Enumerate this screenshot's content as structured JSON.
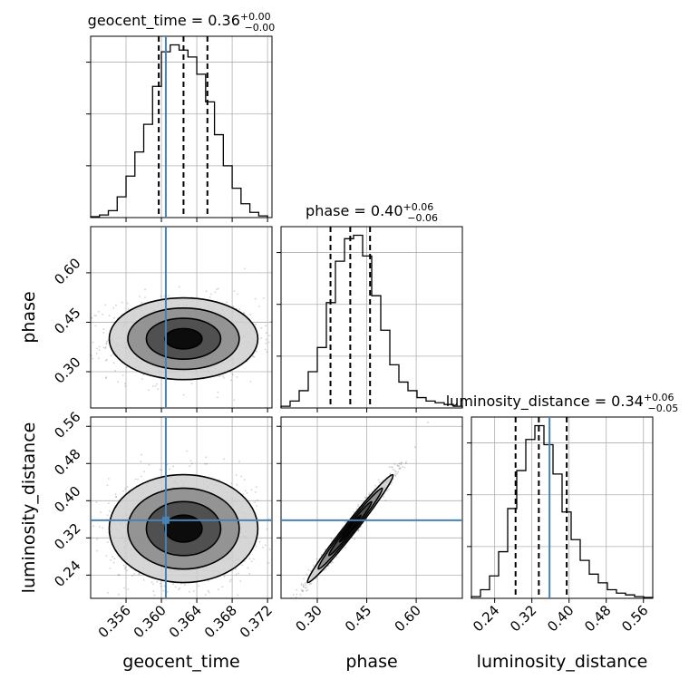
{
  "chart_data": {
    "type": "corner",
    "parameters": [
      {
        "name": "geocent_time",
        "label": "geocent_time",
        "median": "0.36",
        "err_plus": "+0.00",
        "err_minus": "−0.00",
        "quantiles": [
          0.3597,
          0.3625,
          0.3652
        ],
        "truth": 0.3605,
        "range": [
          0.352,
          0.3725
        ],
        "ticks": [
          0.356,
          0.36,
          0.364,
          0.368,
          0.372
        ],
        "tick_labels": [
          "0.356",
          "0.360",
          "0.364",
          "0.368",
          "0.372"
        ]
      },
      {
        "name": "phase",
        "label": "phase",
        "median": "0.40",
        "err_plus": "+0.06",
        "err_minus": "−0.06",
        "quantiles": [
          0.34,
          0.4,
          0.46
        ],
        "truth": null,
        "range": [
          0.19,
          0.74
        ],
        "ticks": [
          0.3,
          0.45,
          0.6
        ],
        "tick_labels": [
          "0.30",
          "0.45",
          "0.60"
        ]
      },
      {
        "name": "luminosity_distance",
        "label": "luminosity_distance",
        "median": "0.34",
        "err_plus": "+0.06",
        "err_minus": "−0.05",
        "quantiles": [
          0.285,
          0.335,
          0.395
        ],
        "truth": 0.358,
        "range": [
          0.19,
          0.58
        ],
        "ticks": [
          0.24,
          0.32,
          0.4,
          0.48,
          0.56
        ],
        "tick_labels": [
          "0.24",
          "0.32",
          "0.40",
          "0.48",
          "0.56"
        ]
      }
    ],
    "histograms": [
      {
        "param": "geocent_time",
        "bin_edges": [
          0.352,
          0.353,
          0.354,
          0.355,
          0.356,
          0.357,
          0.358,
          0.359,
          0.36,
          0.361,
          0.362,
          0.363,
          0.364,
          0.365,
          0.366,
          0.367,
          0.368,
          0.369,
          0.37,
          0.371,
          0.372
        ],
        "counts": [
          0.5,
          1.5,
          4,
          12,
          24,
          38,
          54,
          76,
          96,
          100,
          97,
          93,
          83,
          67,
          48,
          30,
          17,
          8,
          3,
          1
        ]
      },
      {
        "param": "phase",
        "bin_edges": [
          0.19,
          0.2175,
          0.245,
          0.2725,
          0.3,
          0.3275,
          0.355,
          0.3825,
          0.41,
          0.4375,
          0.465,
          0.4925,
          0.52,
          0.5475,
          0.575,
          0.6025,
          0.63,
          0.6575,
          0.685,
          0.7125,
          0.74
        ],
        "counts": [
          1,
          4,
          10,
          21,
          35,
          61,
          85,
          98,
          100,
          88,
          65,
          45,
          25,
          15,
          10,
          6,
          4,
          3,
          2,
          1
        ]
      },
      {
        "param": "luminosity_distance",
        "bin_edges": [
          0.19,
          0.2095,
          0.229,
          0.2485,
          0.268,
          0.2875,
          0.307,
          0.3265,
          0.346,
          0.3655,
          0.385,
          0.4045,
          0.424,
          0.4435,
          0.463,
          0.4825,
          0.502,
          0.5215,
          0.541,
          0.5605,
          0.58
        ],
        "counts": [
          1,
          5,
          13,
          27,
          52,
          74,
          92,
          100,
          89,
          72,
          50,
          34,
          22,
          14,
          9,
          5,
          3,
          2,
          1,
          0.5
        ]
      }
    ],
    "pair_panels": [
      {
        "x": "geocent_time",
        "y": "phase",
        "center": [
          0.3625,
          0.4
        ],
        "sigma": [
          0.0042,
          0.062
        ],
        "rho": 0.0
      },
      {
        "x": "geocent_time",
        "y": "luminosity_distance",
        "center": [
          0.3625,
          0.34
        ],
        "sigma": [
          0.0042,
          0.058
        ],
        "rho": 0.0
      },
      {
        "x": "phase",
        "y": "luminosity_distance",
        "center": [
          0.4,
          0.34
        ],
        "sigma": [
          0.065,
          0.058
        ],
        "rho": 0.985
      }
    ],
    "contour_levels_sigma": [
      0.5,
      1.0,
      1.5,
      2.0
    ],
    "truth_color": "#4682b4",
    "quantile_line_style": "dashed",
    "grid": true
  }
}
